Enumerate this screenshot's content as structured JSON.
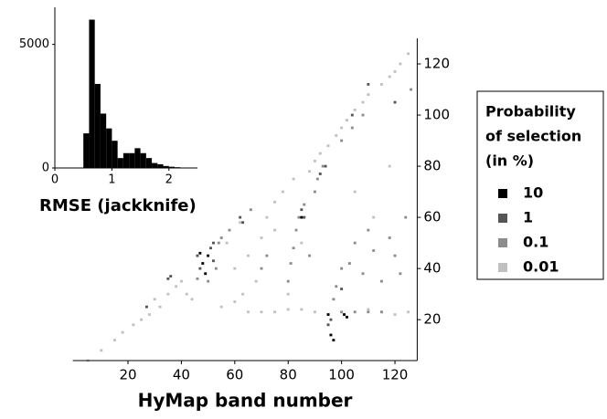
{
  "chart_data": [
    {
      "type": "scatter",
      "xlabel": "HyMap band number",
      "xlim": [
        0,
        128
      ],
      "xticks": [
        20,
        40,
        60,
        80,
        100,
        120
      ],
      "ylim": [
        4,
        130
      ],
      "yticks": [
        20,
        40,
        60,
        80,
        100,
        120
      ],
      "legend_title": [
        "Probability",
        "of selection",
        "(in %)"
      ],
      "legend": "right",
      "series": [
        {
          "name": "10",
          "color": "#000000",
          "x": [
            48,
            50,
            49,
            95,
            96,
            97,
            101,
            102,
            47,
            85
          ],
          "y": [
            42,
            45,
            38,
            22,
            14,
            12,
            22,
            21,
            46,
            60
          ]
        },
        {
          "name": "1",
          "color": "#555555",
          "x": [
            46,
            47,
            51,
            52,
            35,
            36,
            62,
            63,
            85,
            86,
            95,
            96,
            100,
            92,
            94,
            104,
            110,
            120,
            27,
            52
          ],
          "y": [
            45,
            40,
            48,
            43,
            36,
            37,
            60,
            58,
            63,
            60,
            18,
            20,
            32,
            77,
            80,
            100,
            112,
            105,
            25,
            50
          ]
        },
        {
          "name": "0.1",
          "color": "#8c8c8c",
          "x": [
            54,
            46,
            50,
            53,
            55,
            58,
            66,
            70,
            72,
            80,
            81,
            82,
            83,
            84,
            86,
            88,
            90,
            91,
            93,
            97,
            98,
            100,
            103,
            105,
            108,
            110,
            112,
            115,
            118,
            120,
            122,
            124,
            100,
            105,
            110,
            115,
            100,
            104,
            108,
            126
          ],
          "y": [
            50,
            36,
            35,
            40,
            52,
            55,
            63,
            40,
            45,
            35,
            42,
            48,
            55,
            60,
            65,
            45,
            70,
            75,
            80,
            28,
            33,
            40,
            42,
            50,
            38,
            55,
            47,
            35,
            52,
            45,
            38,
            60,
            23,
            23,
            23,
            23,
            90,
            95,
            100,
            110
          ]
        },
        {
          "name": "0.01",
          "color": "#c0c0c0",
          "x": [
            5,
            10,
            15,
            18,
            22,
            25,
            28,
            30,
            32,
            35,
            38,
            40,
            42,
            44,
            62,
            55,
            57,
            60,
            63,
            65,
            68,
            70,
            72,
            75,
            78,
            80,
            82,
            85,
            88,
            90,
            92,
            95,
            98,
            100,
            102,
            105,
            108,
            110,
            112,
            115,
            118,
            120,
            122,
            125,
            65,
            70,
            75,
            80,
            85,
            90,
            95,
            100,
            110,
            115,
            120,
            125,
            60,
            75,
            105,
            118
          ],
          "y": [
            4,
            8,
            12,
            15,
            18,
            20,
            22,
            28,
            25,
            30,
            33,
            35,
            30,
            28,
            58,
            25,
            50,
            27,
            30,
            45,
            35,
            52,
            60,
            66,
            70,
            30,
            75,
            50,
            78,
            82,
            85,
            88,
            92,
            95,
            98,
            102,
            105,
            108,
            60,
            112,
            115,
            117,
            120,
            124,
            23,
            23,
            23,
            24,
            24,
            23,
            22,
            23,
            24,
            23,
            22,
            23,
            40,
            55,
            70,
            80
          ]
        }
      ]
    },
    {
      "type": "histogram",
      "xlabel": "RMSE (jackknife)",
      "color": "#000000",
      "bins": [
        0.5,
        0.6,
        0.7,
        0.8,
        0.9,
        1.0,
        1.1,
        1.2,
        1.3,
        1.4,
        1.5,
        1.6,
        1.7,
        1.8,
        1.9,
        2.0,
        2.1,
        2.2
      ],
      "values": [
        1400,
        6000,
        3400,
        2200,
        1600,
        1100,
        400,
        600,
        600,
        800,
        600,
        400,
        200,
        150,
        80,
        50,
        30
      ],
      "xlim": [
        0,
        2.5
      ],
      "xticks": [
        0,
        1,
        2
      ],
      "ylim": [
        0,
        6500
      ],
      "yticks": [
        0,
        5000
      ]
    }
  ]
}
